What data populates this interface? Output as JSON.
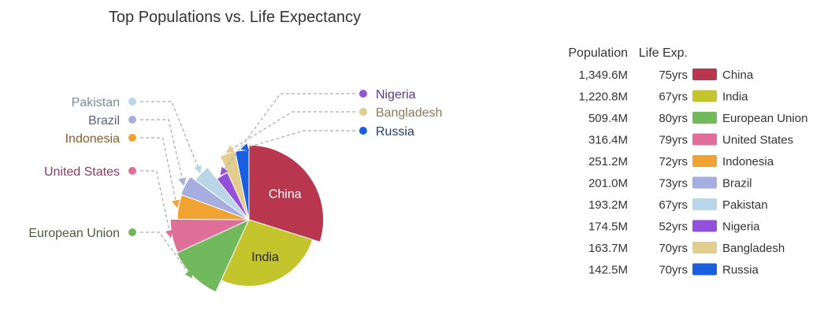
{
  "chart_data": {
    "type": "pie",
    "title": "Top Populations vs. Life Expectancy",
    "legend": {
      "placement": "right",
      "columns": [
        "Population",
        "Life Exp."
      ]
    },
    "slices": [
      {
        "label": "China",
        "population": 1349.6,
        "population_label": "1,349.6M",
        "life_exp": 75,
        "life_exp_label": "75yrs",
        "color": "#b8364e",
        "label_color": "#ffffff",
        "placement": "inside"
      },
      {
        "label": "India",
        "population": 1220.8,
        "population_label": "1,220.8M",
        "life_exp": 67,
        "life_exp_label": "67yrs",
        "color": "#c4c42c",
        "label_color": "#222222",
        "placement": "inside"
      },
      {
        "label": "European Union",
        "population": 509.4,
        "population_label": "509.4M",
        "life_exp": 80,
        "life_exp_label": "80yrs",
        "color": "#72b85c",
        "label_color": "#4a5e3c",
        "placement": "outside-left"
      },
      {
        "label": "United States",
        "population": 316.4,
        "population_label": "316.4M",
        "life_exp": 79,
        "life_exp_label": "79yrs",
        "color": "#df6f99",
        "label_color": "#8a3c5e",
        "placement": "outside-left"
      },
      {
        "label": "Indonesia",
        "population": 251.2,
        "population_label": "251.2M",
        "life_exp": 72,
        "life_exp_label": "72yrs",
        "color": "#f0a330",
        "label_color": "#8a5a2a",
        "placement": "outside-left"
      },
      {
        "label": "Brazil",
        "population": 201.0,
        "population_label": "201.0M",
        "life_exp": 73,
        "life_exp_label": "73yrs",
        "color": "#a6aee0",
        "label_color": "#5c6080",
        "placement": "outside-left"
      },
      {
        "label": "Pakistan",
        "population": 193.2,
        "population_label": "193.2M",
        "life_exp": 67,
        "life_exp_label": "67yrs",
        "color": "#b9d6e8",
        "label_color": "#7a8c96",
        "placement": "outside-left"
      },
      {
        "label": "Nigeria",
        "population": 174.5,
        "population_label": "174.5M",
        "life_exp": 52,
        "life_exp_label": "52yrs",
        "color": "#9350d8",
        "label_color": "#5a3a8a",
        "placement": "outside-right"
      },
      {
        "label": "Bangladesh",
        "population": 163.7,
        "population_label": "163.7M",
        "life_exp": 70,
        "life_exp_label": "70yrs",
        "color": "#e2cc8e",
        "label_color": "#8a7a5a",
        "placement": "outside-right"
      },
      {
        "label": "Russia",
        "population": 142.5,
        "population_label": "142.5M",
        "life_exp": 70,
        "life_exp_label": "70yrs",
        "color": "#1a5fe0",
        "label_color": "#1c3c7a",
        "placement": "outside-right"
      }
    ]
  }
}
